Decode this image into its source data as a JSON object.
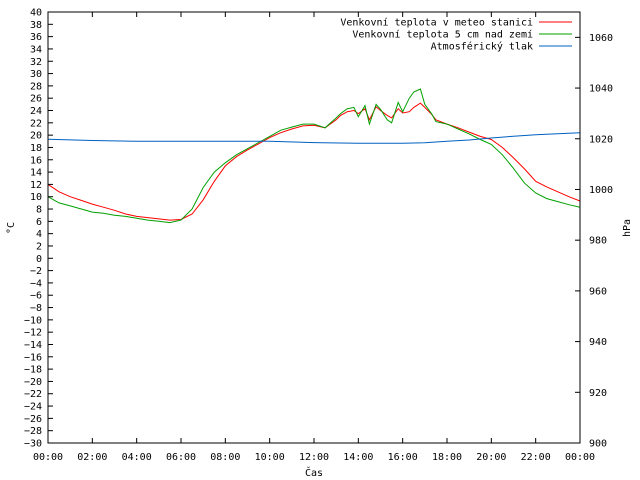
{
  "chart_data": {
    "type": "line",
    "title": "",
    "xlabel": "Čas",
    "ylabel": "°C",
    "y2label": "hPa",
    "x_ticks": [
      "00:00",
      "02:00",
      "04:00",
      "06:00",
      "08:00",
      "10:00",
      "12:00",
      "14:00",
      "16:00",
      "18:00",
      "20:00",
      "22:00",
      "00:00"
    ],
    "x_range_hours": [
      0,
      24
    ],
    "ylim": [
      -30,
      40
    ],
    "y_tick_step": 2,
    "y2lim": [
      900,
      1070
    ],
    "y2_ticks": [
      900,
      920,
      940,
      960,
      980,
      1000,
      1020,
      1040,
      1060
    ],
    "grid": false,
    "legend_position": "top-right",
    "series": [
      {
        "name": "Venkovní teplota v meteo stanici",
        "axis": "left",
        "color": "#ff0000",
        "x": [
          0,
          0.5,
          1,
          1.5,
          2,
          2.5,
          3,
          3.5,
          4,
          4.5,
          5,
          5.5,
          6,
          6.5,
          7,
          7.5,
          8,
          8.5,
          9,
          9.5,
          10,
          10.5,
          11,
          11.5,
          12,
          12.5,
          13,
          13.2,
          13.5,
          13.8,
          14,
          14.3,
          14.5,
          14.8,
          15,
          15.3,
          15.5,
          15.8,
          16,
          16.3,
          16.5,
          16.8,
          17,
          17.3,
          17.5,
          18,
          18.5,
          19,
          19.5,
          20,
          20.5,
          21,
          21.5,
          22,
          22.5,
          23,
          23.5,
          24
        ],
        "values": [
          12,
          10.8,
          10,
          9.4,
          8.8,
          8.3,
          7.8,
          7.2,
          6.8,
          6.6,
          6.4,
          6.2,
          6.3,
          7.2,
          9.5,
          12.5,
          15,
          16.5,
          17.6,
          18.6,
          19.6,
          20.4,
          21,
          21.5,
          21.6,
          21.2,
          22.5,
          23.2,
          23.8,
          24,
          23.5,
          24.3,
          22.5,
          24.6,
          24,
          23.2,
          22.8,
          24.3,
          23.6,
          23.8,
          24.5,
          25.2,
          24.5,
          23.4,
          22.5,
          21.8,
          21.2,
          20.5,
          19.8,
          19.3,
          18,
          16.3,
          14.5,
          12.5,
          11.6,
          10.8,
          10,
          9.3
        ]
      },
      {
        "name": "Venkovní teplota 5 cm nad zemí",
        "axis": "left",
        "color": "#00a000",
        "x": [
          0,
          0.5,
          1,
          1.5,
          2,
          2.5,
          3,
          3.5,
          4,
          4.5,
          5,
          5.5,
          6,
          6.5,
          7,
          7.5,
          8,
          8.5,
          9,
          9.5,
          10,
          10.5,
          11,
          11.5,
          12,
          12.5,
          13,
          13.2,
          13.5,
          13.8,
          14,
          14.3,
          14.5,
          14.8,
          15,
          15.3,
          15.5,
          15.8,
          16,
          16.3,
          16.5,
          16.8,
          17,
          17.3,
          17.5,
          18,
          18.5,
          19,
          19.5,
          20,
          20.5,
          21,
          21.5,
          22,
          22.5,
          23,
          23.5,
          24
        ],
        "values": [
          10,
          9,
          8.5,
          8,
          7.5,
          7.3,
          7,
          6.8,
          6.5,
          6.2,
          6,
          5.8,
          6.2,
          8,
          11.5,
          14,
          15.5,
          16.8,
          17.8,
          18.8,
          19.8,
          20.8,
          21.3,
          21.8,
          21.8,
          21.2,
          22.8,
          23.5,
          24.3,
          24.5,
          23,
          24.8,
          21.8,
          25,
          24.2,
          22.5,
          22,
          25.3,
          23.8,
          26,
          27,
          27.5,
          25,
          23.5,
          22.2,
          21.8,
          21,
          20.2,
          19.3,
          18.5,
          16.8,
          14.6,
          12.2,
          10.6,
          9.7,
          9.2,
          8.7,
          8.3
        ]
      },
      {
        "name": "Atmosférický tlak",
        "axis": "right",
        "color": "#0060c0",
        "x": [
          0,
          2,
          4,
          6,
          8,
          10,
          12,
          14,
          16,
          17,
          18,
          19,
          20,
          21,
          22,
          23,
          24
        ],
        "values": [
          1019.8,
          1019.3,
          1019,
          1019,
          1019,
          1019,
          1018.5,
          1018.2,
          1018.2,
          1018.4,
          1019,
          1019.5,
          1020.3,
          1021,
          1021.6,
          1022,
          1022.4
        ]
      }
    ]
  }
}
